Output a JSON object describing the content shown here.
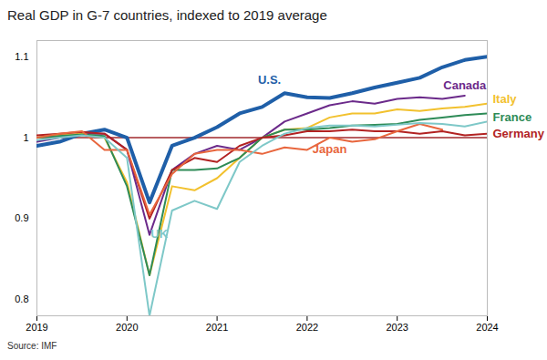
{
  "chart_data": {
    "type": "line",
    "title": "Real GDP in G-7 countries, indexed to 2019 average",
    "caption": "Source: IMF",
    "x": [
      2019,
      2019.25,
      2019.5,
      2019.75,
      2020,
      2020.25,
      2020.5,
      2020.75,
      2021,
      2021.25,
      2021.5,
      2021.75,
      2022,
      2022.25,
      2022.5,
      2022.75,
      2023,
      2023.25,
      2023.5,
      2023.75,
      2024
    ],
    "series": [
      {
        "name": "U.S.",
        "color": "#1f5fa8",
        "values": [
          0.99,
          0.995,
          1.005,
          1.01,
          1.0,
          0.92,
          0.99,
          1.0,
          1.013,
          1.03,
          1.038,
          1.055,
          1.05,
          1.049,
          1.055,
          1.062,
          1.068,
          1.074,
          1.087,
          1.096,
          1.1
        ]
      },
      {
        "name": "Canada",
        "color": "#6b2a8a",
        "values": [
          0.995,
          1.0,
          1.005,
          1.005,
          0.985,
          0.88,
          0.96,
          0.98,
          0.99,
          0.985,
          1.0,
          1.02,
          1.03,
          1.04,
          1.045,
          1.042,
          1.048,
          1.05,
          1.048,
          1.052,
          null
        ]
      },
      {
        "name": "Italy",
        "color": "#f2c12e",
        "values": [
          1.0,
          1.003,
          1.005,
          1.0,
          0.945,
          0.83,
          0.94,
          0.935,
          0.95,
          0.975,
          1.0,
          1.01,
          1.012,
          1.025,
          1.03,
          1.03,
          1.035,
          1.033,
          1.036,
          1.038,
          1.042
        ]
      },
      {
        "name": "France",
        "color": "#2e8b57",
        "values": [
          1.0,
          1.002,
          1.004,
          1.002,
          0.94,
          0.83,
          0.96,
          0.96,
          0.962,
          0.975,
          1.0,
          1.01,
          1.01,
          1.012,
          1.015,
          1.016,
          1.017,
          1.022,
          1.025,
          1.028,
          1.03
        ]
      },
      {
        "name": "Germany",
        "color": "#b22222",
        "values": [
          1.003,
          1.005,
          1.007,
          1.005,
          0.985,
          0.9,
          0.96,
          0.975,
          0.97,
          0.99,
          1.0,
          1.003,
          1.008,
          1.008,
          1.01,
          1.008,
          1.008,
          1.005,
          1.008,
          1.003,
          1.005
        ]
      },
      {
        "name": "Japan",
        "color": "#e8663d",
        "values": [
          1.0,
          1.005,
          1.008,
          0.985,
          0.985,
          0.905,
          0.955,
          0.98,
          0.985,
          0.985,
          0.98,
          0.988,
          0.985,
          1.0,
          0.995,
          0.998,
          1.008,
          1.017,
          1.01,
          null,
          null
        ]
      },
      {
        "name": "UK",
        "color": "#7ec8c8",
        "values": [
          0.997,
          1.0,
          1.003,
          1.0,
          0.975,
          0.78,
          0.91,
          0.922,
          0.912,
          0.97,
          0.99,
          1.005,
          1.012,
          1.015,
          1.015,
          1.014,
          1.016,
          1.018,
          1.017,
          1.014,
          1.02
        ]
      }
    ],
    "baseline": 1,
    "xlim": [
      2019,
      2024
    ],
    "xticks": [
      2019,
      2020,
      2021,
      2022,
      2023,
      2024
    ],
    "ylim": [
      0.78,
      1.12
    ],
    "yticks": [
      0.8,
      0.9,
      1,
      1.1
    ],
    "grid": false
  }
}
